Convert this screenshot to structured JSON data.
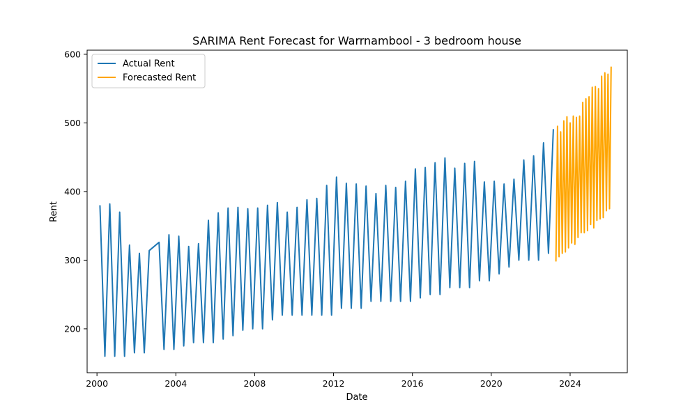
{
  "chart_data": {
    "type": "line",
    "title": "SARIMA Rent Forecast for Warrnambool - 3 bedroom house",
    "xlabel": "Date",
    "ylabel": "Rent",
    "xlim": [
      1999.5,
      2026.9
    ],
    "ylim": [
      136,
      606
    ],
    "x_ticks": [
      2000,
      2004,
      2008,
      2012,
      2016,
      2020,
      2024
    ],
    "y_ticks": [
      200,
      300,
      400,
      500,
      600
    ],
    "grid": false,
    "legend": "top-left",
    "series": [
      {
        "name": "Actual Rent",
        "color": "#1f77b4",
        "points": [
          [
            2000.15,
            380
          ],
          [
            2000.4,
            160
          ],
          [
            2000.65,
            382
          ],
          [
            2000.9,
            160
          ],
          [
            2001.15,
            370
          ],
          [
            2001.4,
            160
          ],
          [
            2001.65,
            322
          ],
          [
            2001.9,
            165
          ],
          [
            2002.15,
            310
          ],
          [
            2002.4,
            165
          ],
          [
            2002.65,
            314
          ],
          [
            2003.15,
            326
          ],
          [
            2003.4,
            170
          ],
          [
            2003.65,
            337
          ],
          [
            2003.9,
            170
          ],
          [
            2004.15,
            335
          ],
          [
            2004.4,
            175
          ],
          [
            2004.65,
            320
          ],
          [
            2004.9,
            180
          ],
          [
            2005.15,
            324
          ],
          [
            2005.4,
            180
          ],
          [
            2005.65,
            358
          ],
          [
            2005.9,
            180
          ],
          [
            2006.15,
            369
          ],
          [
            2006.4,
            185
          ],
          [
            2006.65,
            376
          ],
          [
            2006.9,
            190
          ],
          [
            2007.15,
            377
          ],
          [
            2007.4,
            198
          ],
          [
            2007.65,
            375
          ],
          [
            2007.9,
            200
          ],
          [
            2008.15,
            376
          ],
          [
            2008.4,
            200
          ],
          [
            2008.65,
            380
          ],
          [
            2008.9,
            213
          ],
          [
            2009.15,
            384
          ],
          [
            2009.4,
            220
          ],
          [
            2009.65,
            370
          ],
          [
            2009.9,
            220
          ],
          [
            2010.15,
            377
          ],
          [
            2010.4,
            220
          ],
          [
            2010.65,
            388
          ],
          [
            2010.9,
            220
          ],
          [
            2011.15,
            390
          ],
          [
            2011.4,
            220
          ],
          [
            2011.65,
            409
          ],
          [
            2011.9,
            220
          ],
          [
            2012.15,
            421
          ],
          [
            2012.4,
            230
          ],
          [
            2012.65,
            412
          ],
          [
            2012.9,
            230
          ],
          [
            2013.15,
            411
          ],
          [
            2013.4,
            230
          ],
          [
            2013.65,
            408
          ],
          [
            2013.9,
            240
          ],
          [
            2014.15,
            397
          ],
          [
            2014.4,
            240
          ],
          [
            2014.65,
            409
          ],
          [
            2014.9,
            240
          ],
          [
            2015.15,
            406
          ],
          [
            2015.4,
            240
          ],
          [
            2015.65,
            415
          ],
          [
            2015.9,
            240
          ],
          [
            2016.15,
            433
          ],
          [
            2016.4,
            245
          ],
          [
            2016.65,
            435
          ],
          [
            2016.9,
            250
          ],
          [
            2017.15,
            442
          ],
          [
            2017.4,
            250
          ],
          [
            2017.65,
            449
          ],
          [
            2017.9,
            260
          ],
          [
            2018.15,
            434
          ],
          [
            2018.4,
            260
          ],
          [
            2018.65,
            441
          ],
          [
            2018.9,
            260
          ],
          [
            2019.15,
            444
          ],
          [
            2019.4,
            270
          ],
          [
            2019.65,
            414
          ],
          [
            2019.9,
            270
          ],
          [
            2020.15,
            415
          ],
          [
            2020.4,
            280
          ],
          [
            2020.65,
            411
          ],
          [
            2020.9,
            290
          ],
          [
            2021.15,
            418
          ],
          [
            2021.4,
            300
          ],
          [
            2021.65,
            446
          ],
          [
            2021.9,
            300
          ],
          [
            2022.15,
            452
          ],
          [
            2022.4,
            300
          ],
          [
            2022.65,
            471
          ],
          [
            2022.9,
            310
          ],
          [
            2023.15,
            491
          ]
        ]
      },
      {
        "name": "Forecasted Rent",
        "color": "#ffa500",
        "points": [
          [
            2023.28,
            298
          ],
          [
            2023.36,
            495
          ],
          [
            2023.44,
            305
          ],
          [
            2023.52,
            487
          ],
          [
            2023.6,
            310
          ],
          [
            2023.68,
            503
          ],
          [
            2023.76,
            312
          ],
          [
            2023.84,
            509
          ],
          [
            2023.92,
            318
          ],
          [
            2024.0,
            500
          ],
          [
            2024.08,
            325
          ],
          [
            2024.16,
            510
          ],
          [
            2024.24,
            323
          ],
          [
            2024.32,
            508
          ],
          [
            2024.4,
            333
          ],
          [
            2024.48,
            510
          ],
          [
            2024.56,
            340
          ],
          [
            2024.64,
            530
          ],
          [
            2024.72,
            340
          ],
          [
            2024.8,
            535
          ],
          [
            2024.88,
            343
          ],
          [
            2024.96,
            538
          ],
          [
            2025.04,
            352
          ],
          [
            2025.12,
            552
          ],
          [
            2025.2,
            347
          ],
          [
            2025.28,
            553
          ],
          [
            2025.36,
            358
          ],
          [
            2025.44,
            550
          ],
          [
            2025.52,
            360
          ],
          [
            2025.6,
            568
          ],
          [
            2025.68,
            362
          ],
          [
            2025.76,
            573
          ],
          [
            2025.84,
            372
          ],
          [
            2025.92,
            571
          ],
          [
            2026.0,
            375
          ],
          [
            2026.08,
            582
          ]
        ]
      }
    ]
  }
}
